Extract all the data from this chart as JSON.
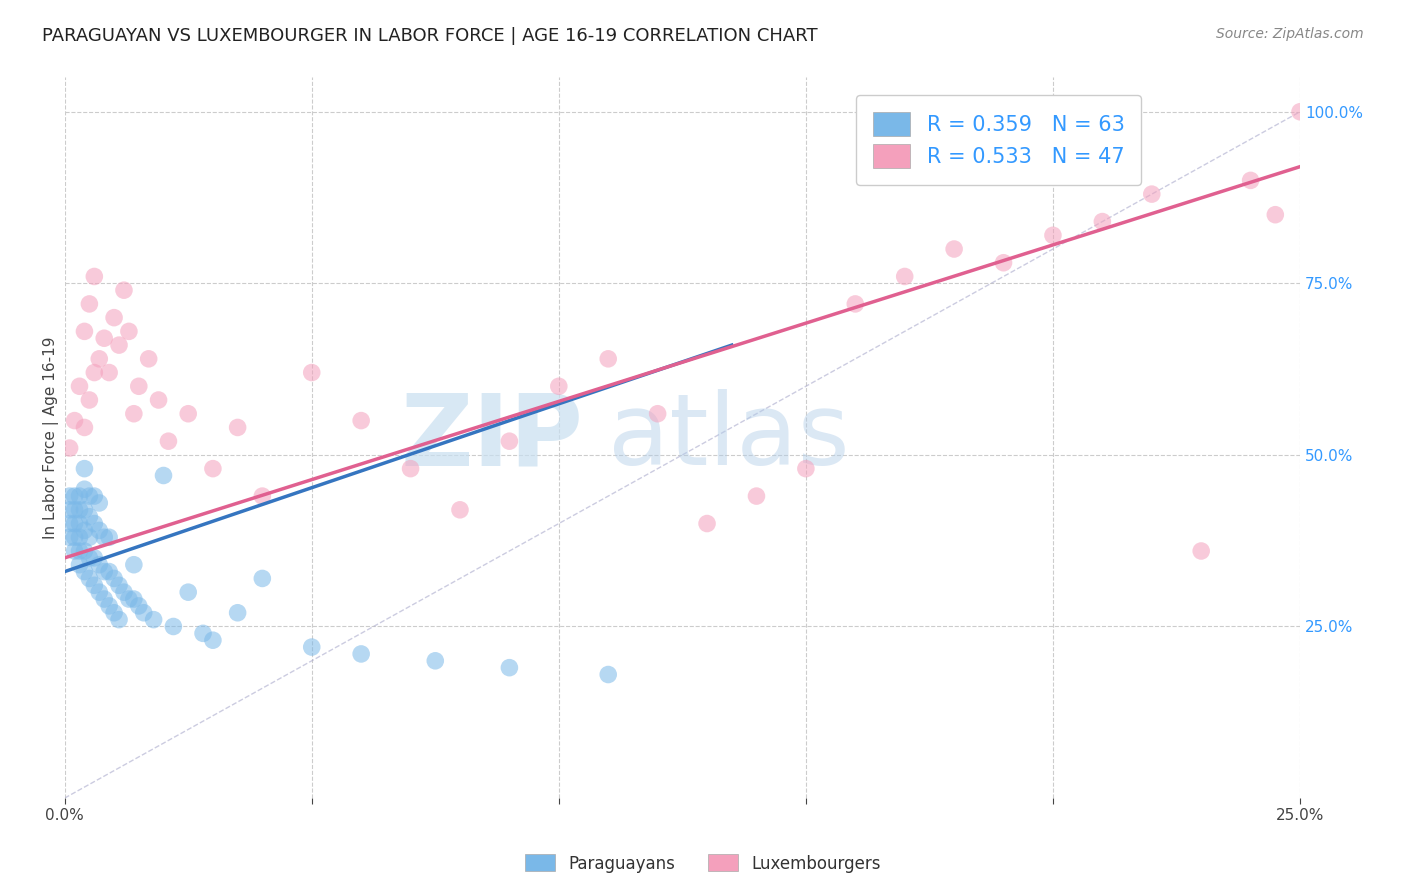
{
  "title": "PARAGUAYAN VS LUXEMBOURGER IN LABOR FORCE | AGE 16-19 CORRELATION CHART",
  "source_text": "Source: ZipAtlas.com",
  "ylabel": "In Labor Force | Age 16-19",
  "xlim": [
    0.0,
    0.25
  ],
  "ylim": [
    0.0,
    1.05
  ],
  "x_ticks": [
    0.0,
    0.05,
    0.1,
    0.15,
    0.2,
    0.25
  ],
  "x_ticklabels": [
    "0.0%",
    "",
    "",
    "",
    "",
    "25.0%"
  ],
  "y_ticks_right": [
    0.25,
    0.5,
    0.75,
    1.0
  ],
  "y_ticklabels_right": [
    "25.0%",
    "50.0%",
    "75.0%",
    "100.0%"
  ],
  "blue_R": 0.359,
  "blue_N": 63,
  "pink_R": 0.533,
  "pink_N": 47,
  "blue_color": "#7ab8e8",
  "pink_color": "#f4a0bc",
  "blue_line_color": "#3575c0",
  "pink_line_color": "#e06090",
  "legend_label_blue": "Paraguayans",
  "legend_label_pink": "Luxembourgers",
  "watermark_zip": "ZIP",
  "watermark_atlas": "atlas",
  "background_color": "#ffffff",
  "grid_color": "#cccccc",
  "title_fontsize": 13,
  "blue_scatter_x": [
    0.001,
    0.001,
    0.001,
    0.001,
    0.002,
    0.002,
    0.002,
    0.002,
    0.002,
    0.003,
    0.003,
    0.003,
    0.003,
    0.003,
    0.003,
    0.004,
    0.004,
    0.004,
    0.004,
    0.004,
    0.004,
    0.005,
    0.005,
    0.005,
    0.005,
    0.005,
    0.006,
    0.006,
    0.006,
    0.006,
    0.007,
    0.007,
    0.007,
    0.007,
    0.008,
    0.008,
    0.008,
    0.009,
    0.009,
    0.009,
    0.01,
    0.01,
    0.011,
    0.011,
    0.012,
    0.013,
    0.014,
    0.014,
    0.015,
    0.016,
    0.018,
    0.02,
    0.022,
    0.025,
    0.028,
    0.03,
    0.035,
    0.04,
    0.05,
    0.06,
    0.075,
    0.09,
    0.11
  ],
  "blue_scatter_y": [
    0.38,
    0.4,
    0.42,
    0.44,
    0.36,
    0.38,
    0.4,
    0.42,
    0.44,
    0.34,
    0.36,
    0.38,
    0.4,
    0.42,
    0.44,
    0.33,
    0.36,
    0.39,
    0.42,
    0.45,
    0.48,
    0.32,
    0.35,
    0.38,
    0.41,
    0.44,
    0.31,
    0.35,
    0.4,
    0.44,
    0.3,
    0.34,
    0.39,
    0.43,
    0.29,
    0.33,
    0.38,
    0.28,
    0.33,
    0.38,
    0.27,
    0.32,
    0.26,
    0.31,
    0.3,
    0.29,
    0.29,
    0.34,
    0.28,
    0.27,
    0.26,
    0.47,
    0.25,
    0.3,
    0.24,
    0.23,
    0.27,
    0.32,
    0.22,
    0.21,
    0.2,
    0.19,
    0.18
  ],
  "pink_scatter_x": [
    0.001,
    0.002,
    0.003,
    0.004,
    0.004,
    0.005,
    0.005,
    0.006,
    0.006,
    0.007,
    0.008,
    0.009,
    0.01,
    0.011,
    0.012,
    0.013,
    0.014,
    0.015,
    0.017,
    0.019,
    0.021,
    0.025,
    0.03,
    0.035,
    0.04,
    0.05,
    0.06,
    0.07,
    0.08,
    0.09,
    0.1,
    0.11,
    0.12,
    0.13,
    0.14,
    0.15,
    0.16,
    0.17,
    0.18,
    0.19,
    0.2,
    0.21,
    0.22,
    0.23,
    0.24,
    0.245,
    0.25
  ],
  "pink_scatter_y": [
    0.51,
    0.55,
    0.6,
    0.54,
    0.68,
    0.58,
    0.72,
    0.62,
    0.76,
    0.64,
    0.67,
    0.62,
    0.7,
    0.66,
    0.74,
    0.68,
    0.56,
    0.6,
    0.64,
    0.58,
    0.52,
    0.56,
    0.48,
    0.54,
    0.44,
    0.62,
    0.55,
    0.48,
    0.42,
    0.52,
    0.6,
    0.64,
    0.56,
    0.4,
    0.44,
    0.48,
    0.72,
    0.76,
    0.8,
    0.78,
    0.82,
    0.84,
    0.88,
    0.36,
    0.9,
    0.85,
    1.0
  ],
  "blue_line_x": [
    0.0,
    0.135
  ],
  "blue_line_y": [
    0.33,
    0.66
  ],
  "pink_line_x": [
    0.0,
    0.25
  ],
  "pink_line_y": [
    0.35,
    0.92
  ],
  "ref_line_x": [
    0.0,
    0.25
  ],
  "ref_line_y": [
    0.0,
    1.0
  ]
}
